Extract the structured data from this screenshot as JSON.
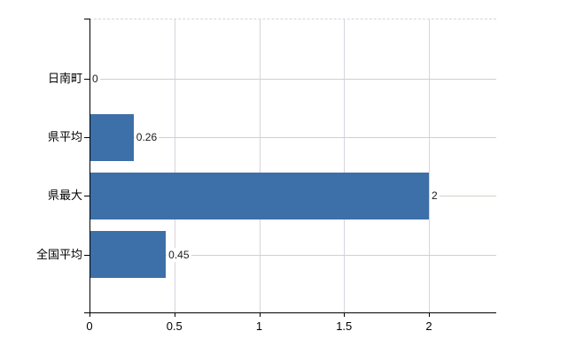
{
  "chart_data": {
    "type": "bar",
    "orientation": "horizontal",
    "title": "",
    "xlabel": "",
    "ylabel": "",
    "categories": [
      "日南町",
      "県平均",
      "県最大",
      "全国平均"
    ],
    "values": [
      0,
      0.26,
      2,
      0.45
    ],
    "value_labels": [
      "0",
      "0.26",
      "2",
      "0.45"
    ],
    "x_ticks": [
      0,
      0.5,
      1,
      1.5,
      2
    ],
    "x_tick_labels": [
      "0",
      "0.5",
      "1",
      "1.5",
      "2"
    ],
    "xlim": [
      0,
      2.4
    ],
    "grid": true,
    "legend": "none",
    "colors": {
      "bar": "#3d6fa8",
      "h_gridline": "#ccd3c6",
      "v_gridline": "#d7d4dc",
      "axis": "#000000",
      "background": "#ffffff",
      "text": "#000000"
    }
  }
}
